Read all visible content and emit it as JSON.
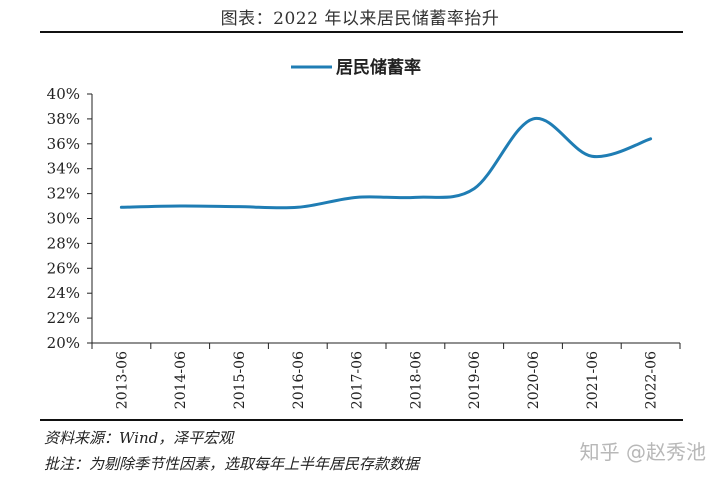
{
  "header": {
    "title": "图表：2022 年以来居民储蓄率抬升"
  },
  "footer": {
    "source": "资料来源：Wind，泽平宏观",
    "note": "批注：为剔除季节性因素，选取每年上半年居民存款数据"
  },
  "watermark": "知乎 @赵秀池",
  "colors": {
    "line": "#1f7db4",
    "axis": "#222222"
  },
  "chart_data": {
    "type": "line",
    "title": "图表：2022 年以来居民储蓄率抬升",
    "categories": [
      "2013-06",
      "2014-06",
      "2015-06",
      "2016-06",
      "2017-06",
      "2018-06",
      "2019-06",
      "2020-06",
      "2021-06",
      "2022-06"
    ],
    "series": [
      {
        "name": "居民储蓄率",
        "values": [
          30.9,
          31.0,
          30.95,
          30.9,
          31.7,
          31.7,
          32.4,
          38.0,
          35.0,
          36.4
        ]
      }
    ],
    "y_ticks": [
      "40%",
      "38%",
      "36%",
      "34%",
      "32%",
      "30%",
      "28%",
      "26%",
      "24%",
      "22%",
      "20%"
    ],
    "ylim": [
      20,
      40
    ],
    "ylabel": "",
    "xlabel": "",
    "grid": false,
    "legend_position": "top-center"
  }
}
